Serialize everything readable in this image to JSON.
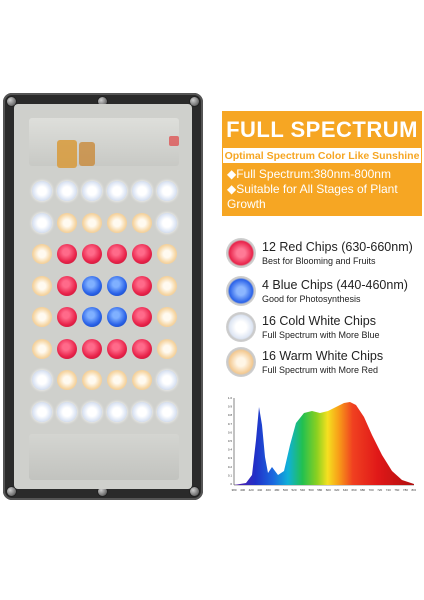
{
  "header": {
    "title": "FULL SPECTRUM",
    "subtitle": "Optimal Spectrum Color Like Sunshine",
    "features": [
      "◆Full Spectrum:380nm-800nm",
      "◆Suitable for All Stages of Plant Growth"
    ]
  },
  "chips": [
    {
      "title": "12 Red Chips (630-660nm)",
      "desc": "Best for Blooming and Fruits",
      "color": "#e8234a",
      "icon": "red-led-icon"
    },
    {
      "title": "4 Blue Chips (440-460nm)",
      "desc": "Good for Photosynthesis",
      "color": "#2a62e8",
      "icon": "blue-led-icon"
    },
    {
      "title": "16 Cold White Chips",
      "desc": "Full Spectrum with More Blue",
      "color": "#e6ecf7",
      "icon": "cold-white-led-icon"
    },
    {
      "title": "16 Warm White Chips",
      "desc": "Full Spectrum with More Red",
      "color": "#f3c991",
      "icon": "warm-white-led-icon"
    }
  ],
  "led_grid": [
    [
      "cold",
      "cold",
      "cold",
      "cold",
      "cold",
      "cold"
    ],
    [
      "cold",
      "warm",
      "warm",
      "warm",
      "warm",
      "cold"
    ],
    [
      "warm",
      "red",
      "red",
      "red",
      "red",
      "warm"
    ],
    [
      "warm",
      "red",
      "blue",
      "blue",
      "red",
      "warm"
    ],
    [
      "warm",
      "red",
      "blue",
      "blue",
      "red",
      "warm"
    ],
    [
      "warm",
      "red",
      "red",
      "red",
      "red",
      "warm"
    ],
    [
      "cold",
      "warm",
      "warm",
      "warm",
      "warm",
      "cold"
    ],
    [
      "cold",
      "cold",
      "cold",
      "cold",
      "cold",
      "cold"
    ]
  ],
  "spectrum_chart": {
    "x_tick_labels": [
      "380",
      "400",
      "420",
      "440",
      "460",
      "480",
      "500",
      "520",
      "540",
      "560",
      "580",
      "600",
      "620",
      "640",
      "660",
      "680",
      "700",
      "720",
      "740",
      "760",
      "780",
      "800"
    ],
    "y_tick_labels": [
      "1.0",
      "0.9",
      "0.8",
      "0.7",
      "0.6",
      "0.5",
      "0.4",
      "0.3",
      "0.2",
      "0.1",
      "0"
    ]
  },
  "colors": {
    "accent": "#f6a623"
  }
}
